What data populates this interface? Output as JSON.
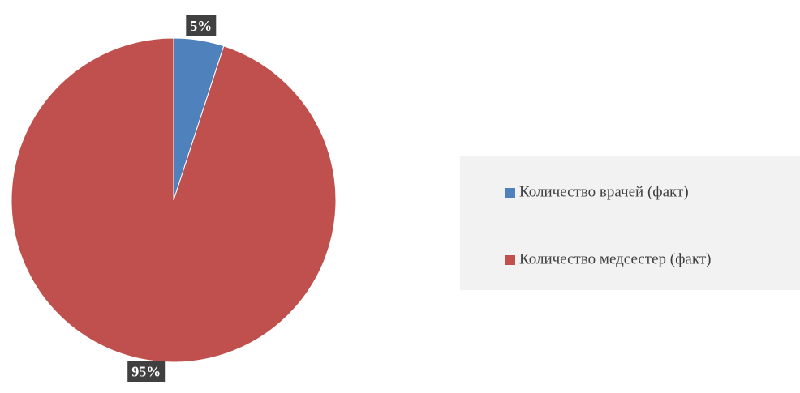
{
  "chart_data": {
    "type": "pie",
    "categories": [
      "Количество врачей (факт)",
      "Количество медсестер (факт)"
    ],
    "values": [
      5,
      95
    ],
    "value_labels": [
      "5%",
      "95%"
    ],
    "colors": [
      "#4f81bd",
      "#c0504d"
    ],
    "legend": "right"
  }
}
